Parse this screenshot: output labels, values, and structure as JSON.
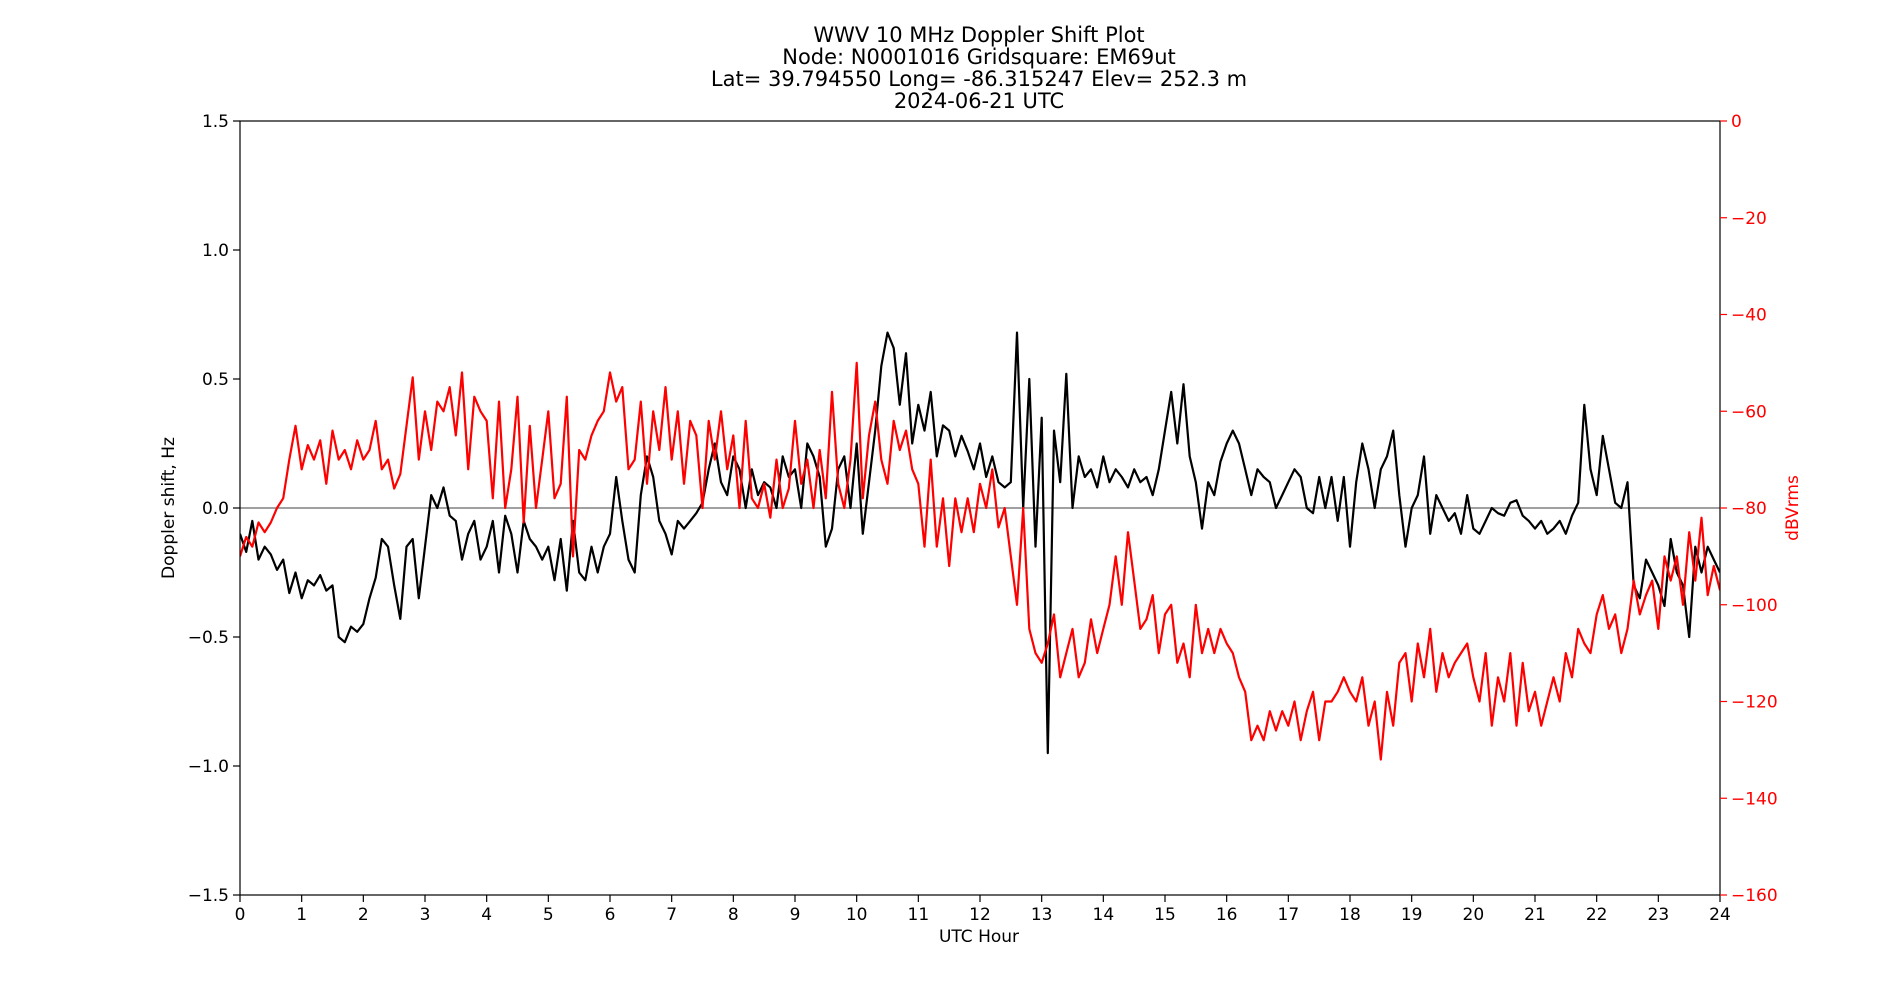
{
  "chart_data": {
    "type": "line",
    "title_lines": [
      "WWV 10 MHz Doppler Shift Plot",
      "Node:  N0001016     Gridsquare:  EM69ut",
      "Lat= 39.794550    Long= -86.315247    Elev= 252.3 m",
      "2024-06-21  UTC"
    ],
    "xlabel": "UTC Hour",
    "ylabel_left": "Doppler shift, Hz",
    "ylabel_right": "dBVrms",
    "xlim": [
      0,
      24
    ],
    "ylim_left": [
      -1.5,
      1.5
    ],
    "ylim_right": [
      -160,
      0
    ],
    "x_ticks": [
      0,
      1,
      2,
      3,
      4,
      5,
      6,
      7,
      8,
      9,
      10,
      11,
      12,
      13,
      14,
      15,
      16,
      17,
      18,
      19,
      20,
      21,
      22,
      23,
      24
    ],
    "x_tick_labels": [
      "0",
      "1",
      "2",
      "3",
      "4",
      "5",
      "6",
      "7",
      "8",
      "9",
      "10",
      "11",
      "12",
      "13",
      "14",
      "15",
      "16",
      "17",
      "18",
      "19",
      "20",
      "21",
      "22",
      "23",
      "24"
    ],
    "y_left_ticks": [
      -1.5,
      -1.0,
      -0.5,
      0.0,
      0.5,
      1.0,
      1.5
    ],
    "y_left_tick_labels": [
      "−1.5",
      "−1.0",
      "−0.5",
      "0.0",
      "0.5",
      "1.0",
      "1.5"
    ],
    "y_right_ticks": [
      0,
      -20,
      -40,
      -60,
      -80,
      -100,
      -120,
      -140,
      -160
    ],
    "y_right_tick_labels": [
      "0",
      "−20",
      "−40",
      "−60",
      "−80",
      "−100",
      "−120",
      "−140",
      "−160"
    ],
    "zero_line": 0.0,
    "grid": false,
    "series": [
      {
        "axis": "left",
        "color": "#000000",
        "x": [
          0,
          0.1,
          0.2,
          0.3,
          0.4,
          0.5,
          0.6,
          0.7,
          0.8,
          0.9,
          1.0,
          1.1,
          1.2,
          1.3,
          1.4,
          1.5,
          1.6,
          1.7,
          1.8,
          1.9,
          2.0,
          2.1,
          2.2,
          2.3,
          2.4,
          2.5,
          2.6,
          2.7,
          2.8,
          2.9,
          3.0,
          3.1,
          3.2,
          3.3,
          3.4,
          3.5,
          3.6,
          3.7,
          3.8,
          3.9,
          4.0,
          4.1,
          4.2,
          4.3,
          4.4,
          4.5,
          4.6,
          4.7,
          4.8,
          4.9,
          5.0,
          5.1,
          5.2,
          5.3,
          5.4,
          5.5,
          5.6,
          5.7,
          5.8,
          5.9,
          6.0,
          6.1,
          6.2,
          6.3,
          6.4,
          6.5,
          6.6,
          6.7,
          6.8,
          6.9,
          7.0,
          7.1,
          7.2,
          7.3,
          7.4,
          7.5,
          7.6,
          7.7,
          7.8,
          7.9,
          8.0,
          8.1,
          8.2,
          8.3,
          8.4,
          8.5,
          8.6,
          8.7,
          8.8,
          8.9,
          9.0,
          9.1,
          9.2,
          9.3,
          9.4,
          9.5,
          9.6,
          9.7,
          9.8,
          9.9,
          10.0,
          10.1,
          10.2,
          10.3,
          10.4,
          10.5,
          10.6,
          10.7,
          10.8,
          10.9,
          11.0,
          11.1,
          11.2,
          11.3,
          11.4,
          11.5,
          11.6,
          11.7,
          11.8,
          11.9,
          12.0,
          12.1,
          12.2,
          12.3,
          12.4,
          12.5,
          12.6,
          12.7,
          12.8,
          12.9,
          13.0,
          13.1,
          13.2,
          13.3,
          13.4,
          13.5,
          13.6,
          13.7,
          13.8,
          13.9,
          14.0,
          14.1,
          14.2,
          14.3,
          14.4,
          14.5,
          14.6,
          14.7,
          14.8,
          14.9,
          15.0,
          15.1,
          15.2,
          15.3,
          15.4,
          15.5,
          15.6,
          15.7,
          15.8,
          15.9,
          16.0,
          16.1,
          16.2,
          16.3,
          16.4,
          16.5,
          16.6,
          16.7,
          16.8,
          16.9,
          17.0,
          17.1,
          17.2,
          17.3,
          17.4,
          17.5,
          17.6,
          17.7,
          17.8,
          17.9,
          18.0,
          18.1,
          18.2,
          18.3,
          18.4,
          18.5,
          18.6,
          18.7,
          18.8,
          18.9,
          19.0,
          19.1,
          19.2,
          19.3,
          19.4,
          19.5,
          19.6,
          19.7,
          19.8,
          19.9,
          20.0,
          20.1,
          20.2,
          20.3,
          20.4,
          20.5,
          20.6,
          20.7,
          20.8,
          20.9,
          21.0,
          21.1,
          21.2,
          21.3,
          21.4,
          21.5,
          21.6,
          21.7,
          21.8,
          21.9,
          22.0,
          22.1,
          22.2,
          22.3,
          22.4,
          22.5,
          22.6,
          22.7,
          22.8,
          22.9,
          23.0,
          23.1,
          23.2,
          23.3,
          23.4,
          23.5,
          23.6,
          23.7,
          23.8,
          23.9,
          24.0
        ],
        "y": [
          -0.1,
          -0.17,
          -0.05,
          -0.2,
          -0.15,
          -0.18,
          -0.24,
          -0.2,
          -0.33,
          -0.25,
          -0.35,
          -0.28,
          -0.3,
          -0.26,
          -0.32,
          -0.3,
          -0.5,
          -0.52,
          -0.46,
          -0.48,
          -0.45,
          -0.35,
          -0.27,
          -0.12,
          -0.15,
          -0.3,
          -0.43,
          -0.15,
          -0.12,
          -0.35,
          -0.15,
          0.05,
          0.0,
          0.08,
          -0.03,
          -0.05,
          -0.2,
          -0.1,
          -0.05,
          -0.2,
          -0.15,
          -0.05,
          -0.25,
          -0.03,
          -0.1,
          -0.25,
          -0.05,
          -0.12,
          -0.15,
          -0.2,
          -0.15,
          -0.28,
          -0.12,
          -0.32,
          -0.05,
          -0.25,
          -0.28,
          -0.15,
          -0.25,
          -0.15,
          -0.1,
          0.12,
          -0.05,
          -0.2,
          -0.25,
          0.05,
          0.2,
          0.12,
          -0.05,
          -0.1,
          -0.18,
          -0.05,
          -0.08,
          -0.05,
          -0.02,
          0.02,
          0.15,
          0.25,
          0.1,
          0.05,
          0.2,
          0.15,
          0.0,
          0.15,
          0.05,
          0.1,
          0.08,
          0.0,
          0.2,
          0.12,
          0.15,
          0.0,
          0.25,
          0.2,
          0.12,
          -0.15,
          -0.08,
          0.15,
          0.2,
          0.0,
          0.25,
          -0.1,
          0.1,
          0.3,
          0.55,
          0.68,
          0.62,
          0.4,
          0.6,
          0.25,
          0.4,
          0.3,
          0.45,
          0.2,
          0.32,
          0.3,
          0.2,
          0.28,
          0.22,
          0.15,
          0.25,
          0.12,
          0.2,
          0.1,
          0.08,
          0.1,
          0.68,
          0.0,
          0.5,
          -0.15,
          0.35,
          -0.95,
          0.3,
          0.1,
          0.52,
          0.0,
          0.2,
          0.12,
          0.15,
          0.08,
          0.2,
          0.1,
          0.15,
          0.12,
          0.08,
          0.15,
          0.1,
          0.12,
          0.05,
          0.15,
          0.3,
          0.45,
          0.25,
          0.48,
          0.2,
          0.1,
          -0.08,
          0.1,
          0.05,
          0.18,
          0.25,
          0.3,
          0.25,
          0.15,
          0.05,
          0.15,
          0.12,
          0.1,
          0.0,
          0.05,
          0.1,
          0.15,
          0.12,
          0.0,
          -0.02,
          0.12,
          0.0,
          0.12,
          -0.05,
          0.12,
          -0.15,
          0.1,
          0.25,
          0.15,
          0.0,
          0.15,
          0.2,
          0.3,
          0.05,
          -0.15,
          0.0,
          0.05,
          0.2,
          -0.1,
          0.05,
          0.0,
          -0.05,
          -0.02,
          -0.1,
          0.05,
          -0.08,
          -0.1,
          -0.05,
          0.0,
          -0.02,
          -0.03,
          0.02,
          0.03,
          -0.03,
          -0.05,
          -0.08,
          -0.05,
          -0.1,
          -0.08,
          -0.05,
          -0.1,
          -0.03,
          0.02,
          0.4,
          0.15,
          0.05,
          0.28,
          0.15,
          0.02,
          0.0,
          0.1,
          -0.3,
          -0.35,
          -0.2,
          -0.25,
          -0.3,
          -0.38,
          -0.12,
          -0.25,
          -0.3,
          -0.5,
          -0.15,
          -0.25,
          -0.15,
          -0.2,
          -0.25
        ]
      },
      {
        "axis": "right",
        "color": "#ff0000",
        "x": [
          0,
          0.1,
          0.2,
          0.3,
          0.4,
          0.5,
          0.6,
          0.7,
          0.8,
          0.9,
          1.0,
          1.1,
          1.2,
          1.3,
          1.4,
          1.5,
          1.6,
          1.7,
          1.8,
          1.9,
          2.0,
          2.1,
          2.2,
          2.3,
          2.4,
          2.5,
          2.6,
          2.7,
          2.8,
          2.9,
          3.0,
          3.1,
          3.2,
          3.3,
          3.4,
          3.5,
          3.6,
          3.7,
          3.8,
          3.9,
          4.0,
          4.1,
          4.2,
          4.3,
          4.4,
          4.5,
          4.6,
          4.7,
          4.8,
          4.9,
          5.0,
          5.1,
          5.2,
          5.3,
          5.4,
          5.5,
          5.6,
          5.7,
          5.8,
          5.9,
          6.0,
          6.1,
          6.2,
          6.3,
          6.4,
          6.5,
          6.6,
          6.7,
          6.8,
          6.9,
          7.0,
          7.1,
          7.2,
          7.3,
          7.4,
          7.5,
          7.6,
          7.7,
          7.8,
          7.9,
          8.0,
          8.1,
          8.2,
          8.3,
          8.4,
          8.5,
          8.6,
          8.7,
          8.8,
          8.9,
          9.0,
          9.1,
          9.2,
          9.3,
          9.4,
          9.5,
          9.6,
          9.7,
          9.8,
          9.9,
          10.0,
          10.1,
          10.2,
          10.3,
          10.4,
          10.5,
          10.6,
          10.7,
          10.8,
          10.9,
          11.0,
          11.1,
          11.2,
          11.3,
          11.4,
          11.5,
          11.6,
          11.7,
          11.8,
          11.9,
          12.0,
          12.1,
          12.2,
          12.3,
          12.4,
          12.5,
          12.6,
          12.7,
          12.8,
          12.9,
          13.0,
          13.1,
          13.2,
          13.3,
          13.4,
          13.5,
          13.6,
          13.7,
          13.8,
          13.9,
          14.0,
          14.1,
          14.2,
          14.3,
          14.4,
          14.5,
          14.6,
          14.7,
          14.8,
          14.9,
          15.0,
          15.1,
          15.2,
          15.3,
          15.4,
          15.5,
          15.6,
          15.7,
          15.8,
          15.9,
          16.0,
          16.1,
          16.2,
          16.3,
          16.4,
          16.5,
          16.6,
          16.7,
          16.8,
          16.9,
          17.0,
          17.1,
          17.2,
          17.3,
          17.4,
          17.5,
          17.6,
          17.7,
          17.8,
          17.9,
          18.0,
          18.1,
          18.2,
          18.3,
          18.4,
          18.5,
          18.6,
          18.7,
          18.8,
          18.9,
          19.0,
          19.1,
          19.2,
          19.3,
          19.4,
          19.5,
          19.6,
          19.7,
          19.8,
          19.9,
          20.0,
          20.1,
          20.2,
          20.3,
          20.4,
          20.5,
          20.6,
          20.7,
          20.8,
          20.9,
          21.0,
          21.1,
          21.2,
          21.3,
          21.4,
          21.5,
          21.6,
          21.7,
          21.8,
          21.9,
          22.0,
          22.1,
          22.2,
          22.3,
          22.4,
          22.5,
          22.6,
          22.7,
          22.8,
          22.9,
          23.0,
          23.1,
          23.2,
          23.3,
          23.4,
          23.5,
          23.6,
          23.7,
          23.8,
          23.9,
          24.0
        ],
        "y": [
          -90,
          -86,
          -88,
          -83,
          -85,
          -83,
          -80,
          -78,
          -70,
          -63,
          -72,
          -67,
          -70,
          -66,
          -75,
          -64,
          -70,
          -68,
          -72,
          -66,
          -70,
          -68,
          -62,
          -72,
          -70,
          -76,
          -73,
          -63,
          -53,
          -70,
          -60,
          -68,
          -58,
          -60,
          -55,
          -65,
          -52,
          -72,
          -57,
          -60,
          -62,
          -78,
          -58,
          -80,
          -72,
          -57,
          -83,
          -63,
          -80,
          -70,
          -60,
          -78,
          -75,
          -57,
          -90,
          -68,
          -70,
          -65,
          -62,
          -60,
          -52,
          -58,
          -55,
          -72,
          -70,
          -58,
          -75,
          -60,
          -68,
          -55,
          -70,
          -60,
          -75,
          -62,
          -65,
          -80,
          -62,
          -70,
          -60,
          -72,
          -65,
          -80,
          -62,
          -78,
          -80,
          -75,
          -82,
          -70,
          -80,
          -76,
          -62,
          -75,
          -70,
          -80,
          -68,
          -78,
          -56,
          -75,
          -80,
          -70,
          -50,
          -78,
          -65,
          -58,
          -70,
          -75,
          -62,
          -68,
          -64,
          -72,
          -75,
          -88,
          -70,
          -88,
          -78,
          -92,
          -78,
          -85,
          -78,
          -85,
          -75,
          -80,
          -72,
          -84,
          -80,
          -90,
          -100,
          -80,
          -105,
          -110,
          -112,
          -108,
          -102,
          -115,
          -110,
          -105,
          -115,
          -112,
          -103,
          -110,
          -105,
          -100,
          -90,
          -100,
          -85,
          -95,
          -105,
          -103,
          -98,
          -110,
          -102,
          -100,
          -112,
          -108,
          -115,
          -100,
          -110,
          -105,
          -110,
          -105,
          -108,
          -110,
          -115,
          -118,
          -128,
          -125,
          -128,
          -122,
          -126,
          -122,
          -125,
          -120,
          -128,
          -122,
          -118,
          -128,
          -120,
          -120,
          -118,
          -115,
          -118,
          -120,
          -115,
          -125,
          -120,
          -132,
          -118,
          -125,
          -112,
          -110,
          -120,
          -108,
          -115,
          -105,
          -118,
          -110,
          -115,
          -112,
          -110,
          -108,
          -115,
          -120,
          -110,
          -125,
          -115,
          -120,
          -110,
          -125,
          -112,
          -122,
          -118,
          -125,
          -120,
          -115,
          -120,
          -110,
          -115,
          -105,
          -108,
          -110,
          -102,
          -98,
          -105,
          -102,
          -110,
          -105,
          -95,
          -102,
          -98,
          -95,
          -105,
          -90,
          -95,
          -90,
          -100,
          -85,
          -95,
          -82,
          -98,
          -92,
          -97
        ]
      }
    ]
  }
}
